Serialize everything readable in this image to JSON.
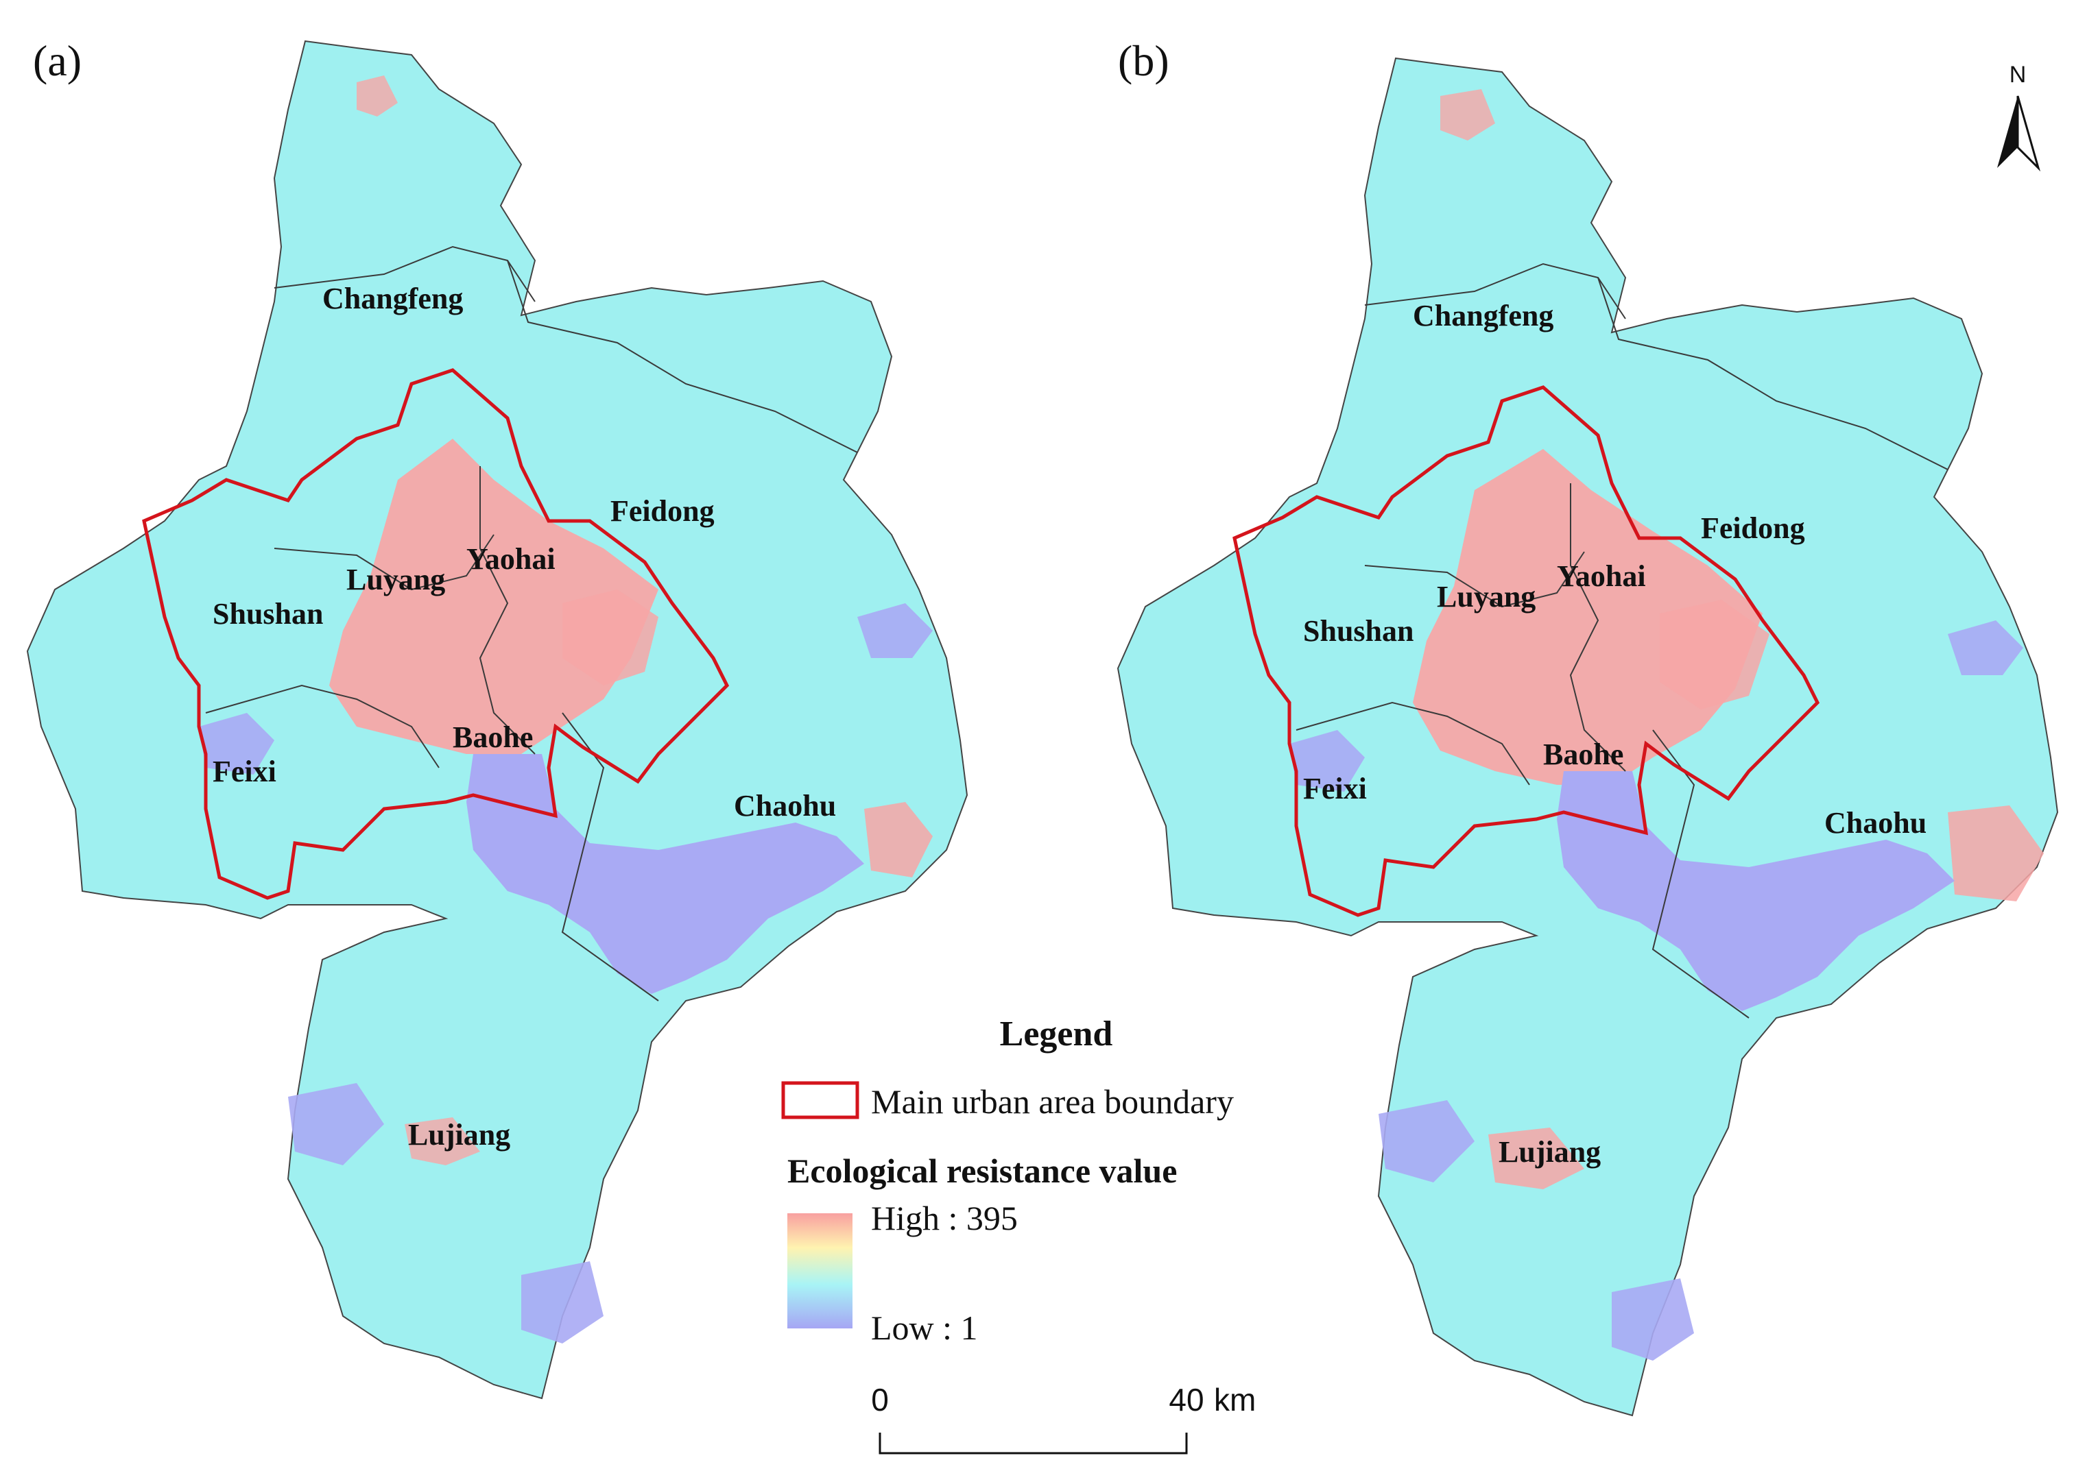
{
  "panels": [
    {
      "label": "(a)",
      "districts": [
        "Changfeng",
        "Feidong",
        "Yaohai",
        "Luyang",
        "Shushan",
        "Baohe",
        "Feixi",
        "Chaohu",
        "Lujiang"
      ]
    },
    {
      "label": "(b)",
      "districts": [
        "Changfeng",
        "Feidong",
        "Yaohai",
        "Luyang",
        "Shushan",
        "Baohe",
        "Feixi",
        "Chaohu",
        "Lujiang"
      ]
    }
  ],
  "legend": {
    "title": "Legend",
    "boundary_label": "Main urban area boundary",
    "resistance_title": "Ecological resistance value",
    "high_label": "High : 395",
    "low_label": "Low : 1"
  },
  "scale_bar": {
    "start": "0",
    "end": "40",
    "unit": "km"
  },
  "north_arrow": "N",
  "colors": {
    "base": "#9ff0f0",
    "urban": "#f7a6a6",
    "water": "#a9aaf4",
    "boundary": "#d4141c",
    "district_line": "#3a3a3a",
    "gradient_high": "#f8a0a0",
    "gradient_mid": "#fff3b0",
    "gradient_low_mid": "#a8f4f6",
    "gradient_low": "#a6a6f4"
  }
}
